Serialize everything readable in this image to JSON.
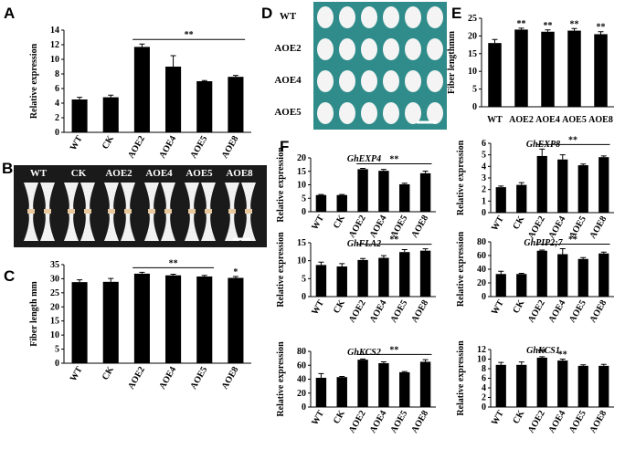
{
  "panels": [
    "A",
    "B",
    "C",
    "D",
    "E",
    "F"
  ],
  "photos": [
    {
      "labels": [
        "WT",
        "CK",
        "AOE2",
        "AOE4",
        "AOE5",
        "AOE8"
      ]
    },
    {
      "labels": [
        "WT",
        "AOE2",
        "AOE4",
        "AOE5"
      ]
    }
  ],
  "chart_data": [
    {
      "type": "bar",
      "ylabel": "Relative expression",
      "categories": [
        "WT",
        "CK",
        "AOE2",
        "AOE4",
        "AOE5",
        "AOE8"
      ],
      "values": [
        4.5,
        4.8,
        11.7,
        9.0,
        7.0,
        7.6
      ],
      "errors": [
        0.3,
        0.3,
        0.4,
        1.5,
        0.1,
        0.2
      ],
      "color": "#000000",
      "ylim": [
        0,
        14
      ],
      "yticks": [
        0,
        2,
        4,
        6,
        8,
        10,
        12,
        14
      ],
      "annotations": [
        {
          "text": "**",
          "from": 2,
          "to": 5
        }
      ]
    },
    {
      "type": "bar",
      "ylabel": "Fiber length mm",
      "categories": [
        "WT",
        "CK",
        "AOE2",
        "AOE4",
        "AOE5",
        "AOE8"
      ],
      "values": [
        28.8,
        28.9,
        31.8,
        31.2,
        30.8,
        30.3
      ],
      "errors": [
        0.8,
        1.2,
        0.5,
        0.4,
        0.4,
        0.5
      ],
      "color": "#000000",
      "ylim": [
        0,
        35
      ],
      "yticks": [
        0,
        5,
        10,
        15,
        20,
        25,
        30,
        35
      ],
      "annotations": [
        {
          "text": "**",
          "from": 2,
          "to": 4
        },
        {
          "text": "*",
          "at": 5
        }
      ]
    },
    {
      "type": "bar",
      "ylabel": "Fiber lengthmm",
      "categories": [
        "WT",
        "AOE2",
        "AOE4",
        "AOE5",
        "AOE8"
      ],
      "values": [
        18.0,
        21.8,
        21.2,
        21.5,
        20.5
      ],
      "errors": [
        1.0,
        0.4,
        0.5,
        0.6,
        0.7
      ],
      "color": "#000000",
      "ylim": [
        0,
        25
      ],
      "yticks": [
        0,
        5,
        10,
        15,
        20,
        25
      ],
      "annotations": [
        {
          "text": "**",
          "at": 1
        },
        {
          "text": "**",
          "at": 2
        },
        {
          "text": "**",
          "at": 3
        },
        {
          "text": "**",
          "at": 4
        }
      ]
    },
    {
      "type": "bar",
      "title": "GhEXP4",
      "ylabel": "Relative expression",
      "categories": [
        "WT",
        "CK",
        "AOE2",
        "AOE4",
        "AOE5",
        "AOE8"
      ],
      "values": [
        6.2,
        6.2,
        15.8,
        15.2,
        10.2,
        14.3
      ],
      "errors": [
        0.2,
        0.2,
        0.3,
        0.5,
        0.4,
        0.8
      ],
      "color": "#000000",
      "ylim": [
        0,
        20
      ],
      "yticks": [
        0,
        5,
        10,
        15,
        20
      ],
      "annotations": [
        {
          "text": "**",
          "from": 2,
          "to": 5
        }
      ]
    },
    {
      "type": "bar",
      "title": "GhEXP8",
      "ylabel": "Relative expression",
      "categories": [
        "WT",
        "CK",
        "AOE2",
        "AOE4",
        "AOE5",
        "AOE8"
      ],
      "values": [
        2.2,
        2.4,
        4.9,
        4.6,
        4.1,
        4.8
      ],
      "errors": [
        0.1,
        0.2,
        0.6,
        0.4,
        0.1,
        0.1
      ],
      "color": "#000000",
      "ylim": [
        0,
        6
      ],
      "yticks": [
        0,
        1,
        2,
        3,
        4,
        5,
        6
      ],
      "annotations": [
        {
          "text": "**",
          "from": 2,
          "to": 5
        }
      ]
    },
    {
      "type": "bar",
      "title": "GhFLA2",
      "ylabel": "Relative expression",
      "categories": [
        "WT",
        "CK",
        "AOE2",
        "AOE4",
        "AOE5",
        "AOE8"
      ],
      "values": [
        8.8,
        8.4,
        10.2,
        10.8,
        12.4,
        12.8
      ],
      "errors": [
        0.8,
        0.8,
        0.4,
        0.6,
        0.7,
        0.5
      ],
      "color": "#000000",
      "ylim": [
        0,
        15
      ],
      "yticks": [
        0,
        5,
        10,
        15
      ],
      "annotations": [
        {
          "text": "**",
          "from": 2,
          "to": 5
        }
      ]
    },
    {
      "type": "bar",
      "title": "GhPIP2;7",
      "ylabel": "Relative expression",
      "categories": [
        "WT",
        "CK",
        "AOE2",
        "AOE4",
        "AOE5",
        "AOE8"
      ],
      "values": [
        33,
        33,
        67,
        62,
        55,
        63
      ],
      "errors": [
        4,
        1,
        1,
        8,
        2,
        2
      ],
      "color": "#000000",
      "ylim": [
        0,
        80
      ],
      "yticks": [
        0,
        20,
        40,
        60,
        80
      ],
      "annotations": [
        {
          "text": "**",
          "from": 2,
          "to": 5
        }
      ]
    },
    {
      "type": "bar",
      "title": "GhKCS2",
      "ylabel": "Relative expression",
      "categories": [
        "WT",
        "CK",
        "AOE2",
        "AOE4",
        "AOE5",
        "AOE8"
      ],
      "values": [
        42,
        43,
        68,
        63,
        50,
        65
      ],
      "errors": [
        6,
        1,
        1,
        2,
        1,
        3
      ],
      "color": "#000000",
      "ylim": [
        0,
        80
      ],
      "yticks": [
        0,
        20,
        40,
        60,
        80
      ],
      "annotations": [
        {
          "text": "**",
          "from": 2,
          "to": 5
        }
      ]
    },
    {
      "type": "bar",
      "title": "GhKCS1",
      "ylabel": "Relative expression",
      "categories": [
        "WT",
        "CK",
        "AOE2",
        "AOE4",
        "AOE5",
        "AOE8"
      ],
      "values": [
        8.8,
        8.8,
        10.3,
        9.7,
        8.6,
        8.6
      ],
      "errors": [
        0.5,
        0.6,
        0.2,
        0.3,
        0.2,
        0.3
      ],
      "color": "#000000",
      "ylim": [
        0,
        12
      ],
      "yticks": [
        0,
        2,
        4,
        6,
        8,
        10,
        12
      ],
      "annotations": [
        {
          "text": "**",
          "at": 2
        },
        {
          "text": "**",
          "at": 3
        }
      ]
    }
  ]
}
